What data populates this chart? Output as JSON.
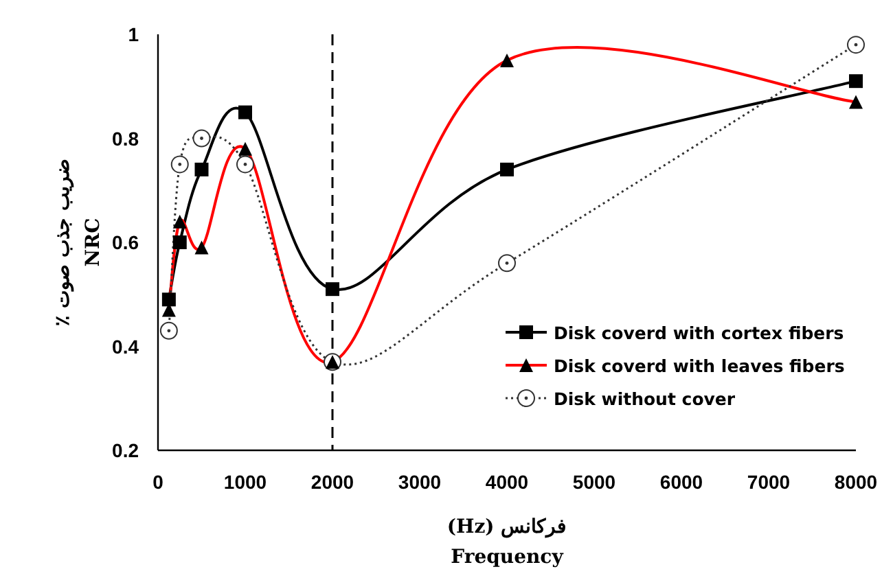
{
  "chart_data": {
    "type": "line",
    "xlabel": "فرکانس (Hz)\nFrequency",
    "ylabel": "ضریب جذب صوت ٪\nNRC",
    "x": [
      125,
      250,
      500,
      1000,
      2000,
      4000,
      8000
    ],
    "xlim": [
      0,
      8000
    ],
    "xticks": [
      0,
      1000,
      2000,
      3000,
      4000,
      5000,
      6000,
      7000,
      8000
    ],
    "ylim": [
      0.2,
      1
    ],
    "yticks": [
      0.2,
      0.4,
      0.6,
      0.8,
      1
    ],
    "grid": false,
    "legend": "bottom right",
    "ref_lines": [
      {
        "axis": "x",
        "value": 2000,
        "color": "#000000",
        "line_style": "dashed"
      }
    ],
    "series": [
      {
        "name": "Disk coverd with cortex fibers",
        "color": "#000000",
        "marker": "square",
        "line_style": "solid",
        "values": [
          0.49,
          0.6,
          0.74,
          0.85,
          0.51,
          0.74,
          0.91
        ]
      },
      {
        "name": "Disk coverd with leaves fibers",
        "color": "#ff0000",
        "marker": "triangle",
        "line_style": "solid",
        "values": [
          0.47,
          0.64,
          0.59,
          0.78,
          0.37,
          0.95,
          0.87
        ]
      },
      {
        "name": "Disk without cover",
        "color": "#333333",
        "marker": "circle",
        "line_style": "dotted",
        "values": [
          0.43,
          0.75,
          0.8,
          0.75,
          0.37,
          0.56,
          0.98
        ]
      }
    ]
  }
}
